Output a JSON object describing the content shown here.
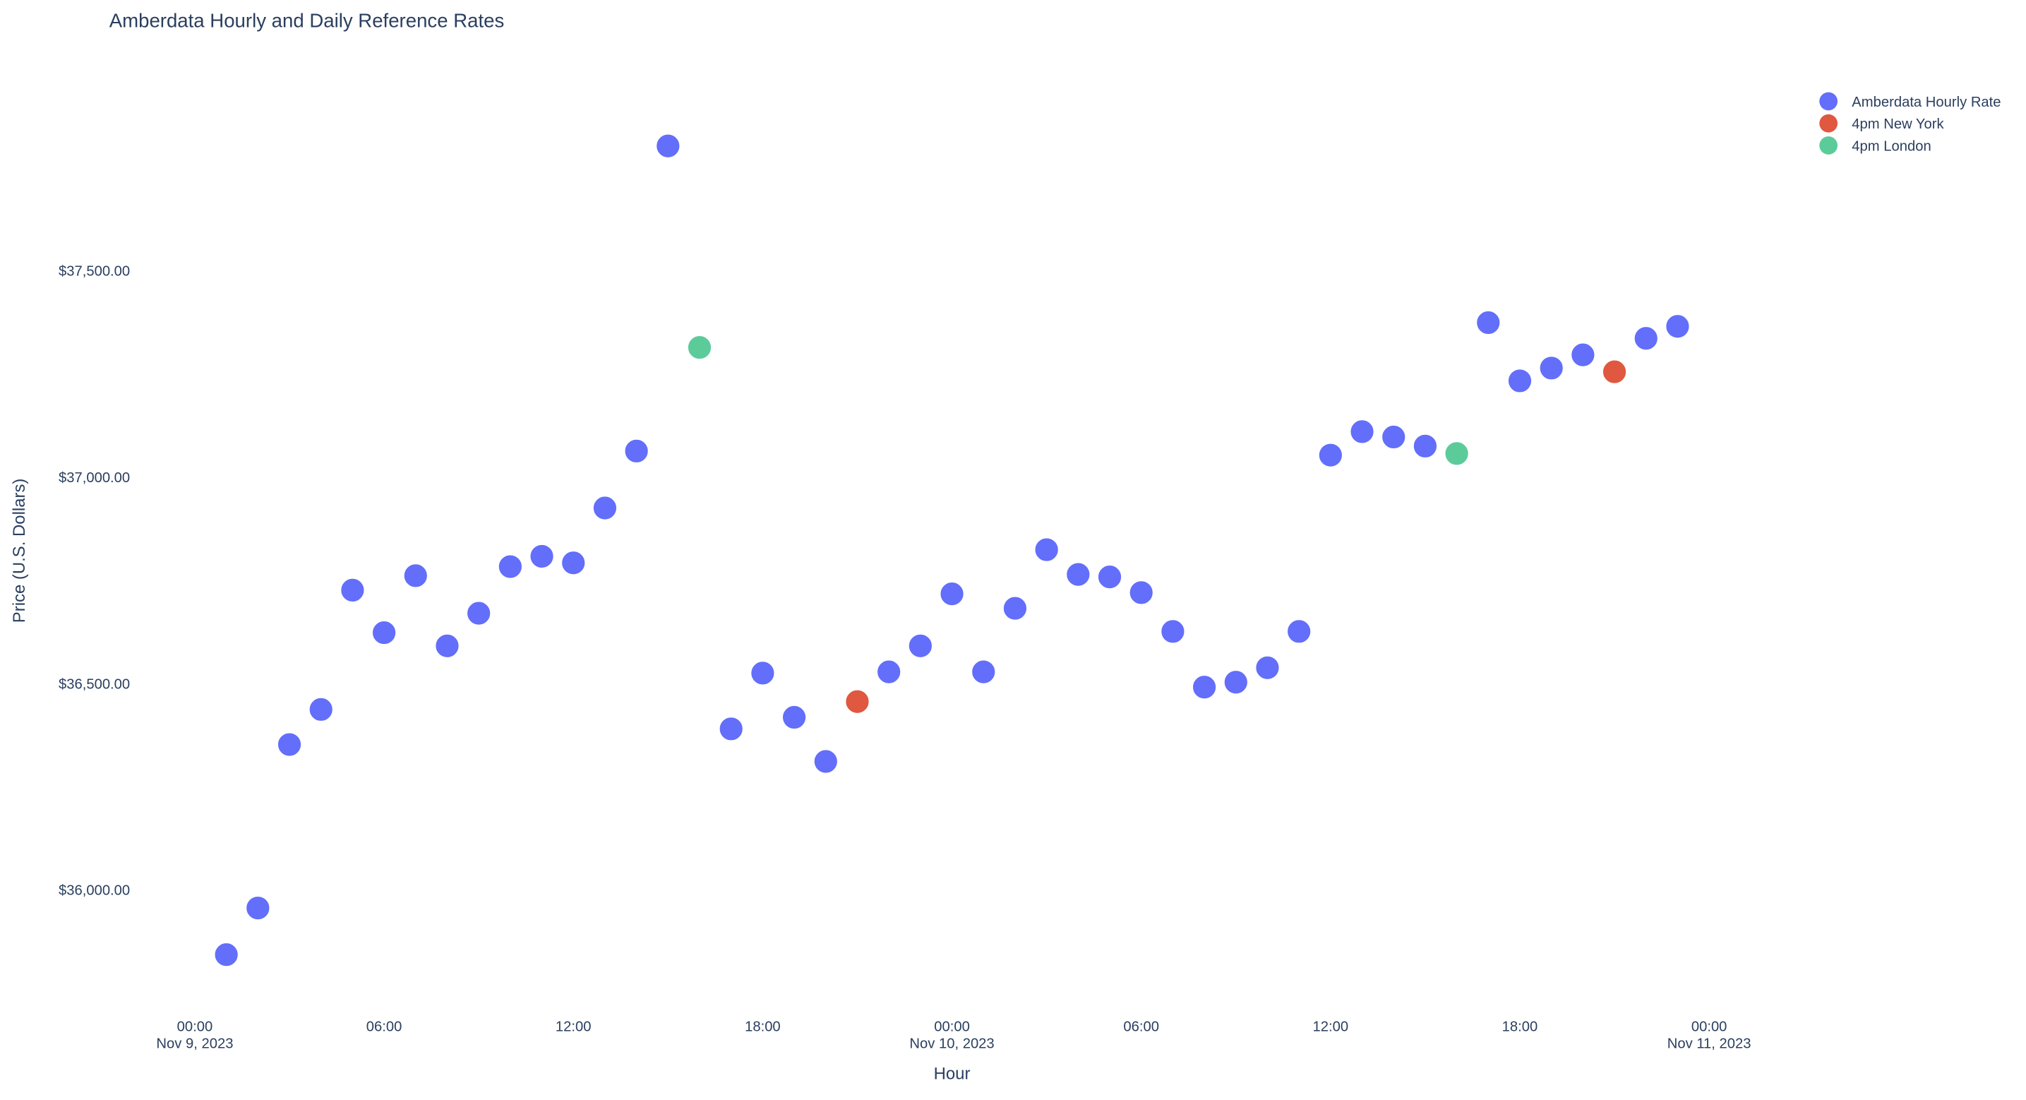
{
  "chart_data": {
    "type": "scatter",
    "title": "Amberdata Hourly and Daily Reference Rates",
    "xlabel": "Hour",
    "ylabel": "Price (U.S. Dollars)",
    "legend": "top-right",
    "grid": false,
    "xlim": [
      "2023-11-08 21:00",
      "2023-11-11 03:00"
    ],
    "ylim": [
      35730,
      37970
    ],
    "xticks": [
      {
        "value": "2023-11-09 00:00",
        "label": [
          "00:00",
          "Nov 9, 2023"
        ]
      },
      {
        "value": "2023-11-09 06:00",
        "label": [
          "06:00"
        ]
      },
      {
        "value": "2023-11-09 12:00",
        "label": [
          "12:00"
        ]
      },
      {
        "value": "2023-11-09 18:00",
        "label": [
          "18:00"
        ]
      },
      {
        "value": "2023-11-10 00:00",
        "label": [
          "00:00",
          "Nov 10, 2023"
        ]
      },
      {
        "value": "2023-11-10 06:00",
        "label": [
          "06:00"
        ]
      },
      {
        "value": "2023-11-10 12:00",
        "label": [
          "12:00"
        ]
      },
      {
        "value": "2023-11-10 18:00",
        "label": [
          "18:00"
        ]
      },
      {
        "value": "2023-11-11 00:00",
        "label": [
          "00:00",
          "Nov 11, 2023"
        ]
      }
    ],
    "yticks": [
      {
        "value": 36000,
        "label": "$36,000.00"
      },
      {
        "value": 36500,
        "label": "$36,500.00"
      },
      {
        "value": 37000,
        "label": "$37,000.00"
      },
      {
        "value": 37500,
        "label": "$37,500.00"
      }
    ],
    "series": [
      {
        "name": "Amberdata Hourly Rate",
        "color": "#636efa",
        "x": [
          "2023-11-09 01:00",
          "2023-11-09 02:00",
          "2023-11-09 03:00",
          "2023-11-09 04:00",
          "2023-11-09 05:00",
          "2023-11-09 06:00",
          "2023-11-09 07:00",
          "2023-11-09 08:00",
          "2023-11-09 09:00",
          "2023-11-09 10:00",
          "2023-11-09 11:00",
          "2023-11-09 12:00",
          "2023-11-09 13:00",
          "2023-11-09 14:00",
          "2023-11-09 15:00",
          "2023-11-09 17:00",
          "2023-11-09 18:00",
          "2023-11-09 19:00",
          "2023-11-09 20:00",
          "2023-11-09 22:00",
          "2023-11-09 23:00",
          "2023-11-10 00:00",
          "2023-11-10 01:00",
          "2023-11-10 02:00",
          "2023-11-10 03:00",
          "2023-11-10 04:00",
          "2023-11-10 05:00",
          "2023-11-10 06:00",
          "2023-11-10 07:00",
          "2023-11-10 08:00",
          "2023-11-10 09:00",
          "2023-11-10 10:00",
          "2023-11-10 11:00",
          "2023-11-10 12:00",
          "2023-11-10 13:00",
          "2023-11-10 14:00",
          "2023-11-10 15:00",
          "2023-11-10 17:00",
          "2023-11-10 18:00",
          "2023-11-10 19:00",
          "2023-11-10 20:00",
          "2023-11-10 22:00",
          "2023-11-10 23:00"
        ],
        "values": [
          35843,
          35956,
          36352,
          36437,
          36726,
          36623,
          36761,
          36591,
          36670,
          36783,
          36808,
          36792,
          36925,
          37063,
          37802,
          36390,
          36525,
          36418,
          36311,
          36528,
          36591,
          36717,
          36528,
          36682,
          36824,
          36764,
          36758,
          36720,
          36626,
          36491,
          36503,
          36538,
          36626,
          37053,
          37110,
          37097,
          37075,
          37374,
          37233,
          37264,
          37296,
          37336,
          37365
        ]
      },
      {
        "name": "4pm New York",
        "color": "#e0583f",
        "x": [
          "2023-11-09 21:00",
          "2023-11-10 21:00"
        ],
        "values": [
          36456,
          37255
        ]
      },
      {
        "name": "4pm London",
        "color": "#5ccb9a",
        "x": [
          "2023-11-09 16:00",
          "2023-11-10 16:00"
        ],
        "values": [
          37314,
          37057
        ]
      }
    ]
  }
}
